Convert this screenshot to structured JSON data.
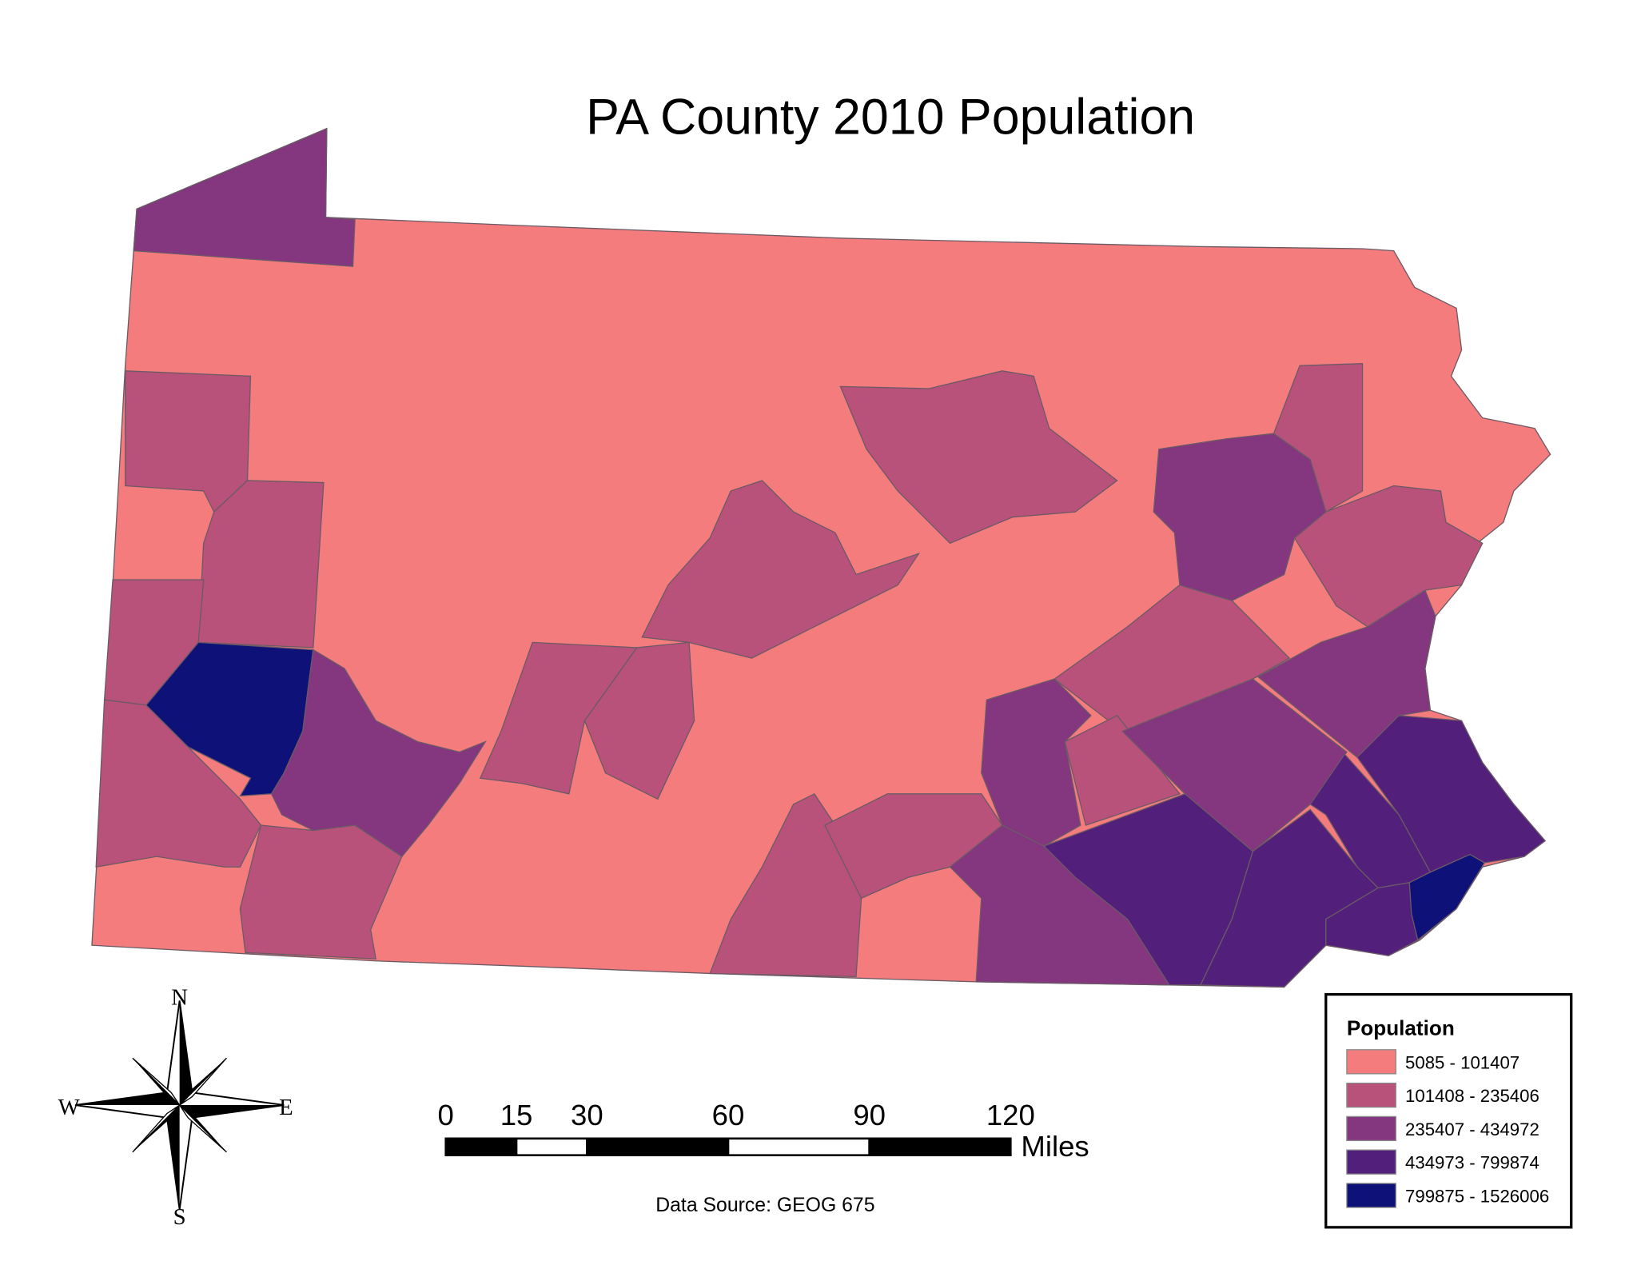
{
  "title": "PA County 2010 Population",
  "legend": {
    "title": "Population",
    "classes": [
      {
        "label": "5085 - 101407",
        "color": "#f47c7c"
      },
      {
        "label": "101408 - 235406",
        "color": "#b9527a"
      },
      {
        "label": "235407 - 434972",
        "color": "#84367f"
      },
      {
        "label": "434973 - 799874",
        "color": "#521f7a"
      },
      {
        "label": "799875 - 1526006",
        "color": "#0e1278"
      }
    ]
  },
  "scale_bar": {
    "ticks": [
      0,
      15,
      30,
      60,
      90,
      120
    ],
    "unit": "Miles"
  },
  "source": "Data Source: GEOG 675",
  "compass": {
    "n": "N",
    "e": "E",
    "s": "S",
    "w": "W"
  }
}
